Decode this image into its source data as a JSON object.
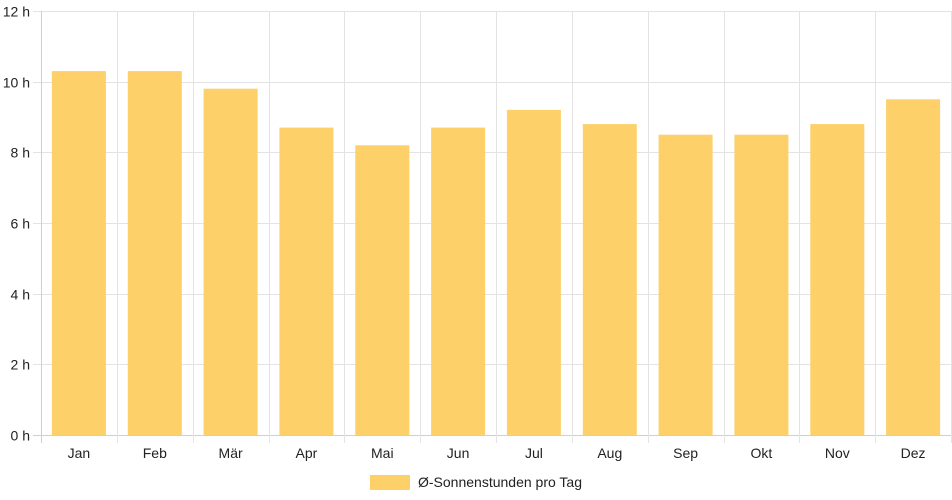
{
  "chart_data": {
    "type": "bar",
    "categories": [
      "Jan",
      "Feb",
      "Mär",
      "Apr",
      "Mai",
      "Jun",
      "Jul",
      "Aug",
      "Sep",
      "Okt",
      "Nov",
      "Dez"
    ],
    "series": [
      {
        "name": "Ø-Sonnenstunden pro Tag",
        "values": [
          10.3,
          10.3,
          9.8,
          8.7,
          8.2,
          8.7,
          9.2,
          8.8,
          8.5,
          8.5,
          8.8,
          9.5
        ],
        "color": "#fed06a"
      }
    ],
    "ylim": [
      0,
      12
    ],
    "yticks": [
      0,
      2,
      4,
      6,
      8,
      10,
      12
    ],
    "ytick_suffix": " h",
    "ytick_labels": [
      "0 h",
      "2 h",
      "4 h",
      "6 h",
      "8 h",
      "10 h",
      "12 h"
    ],
    "grid": true,
    "legend": "bottom-center"
  }
}
